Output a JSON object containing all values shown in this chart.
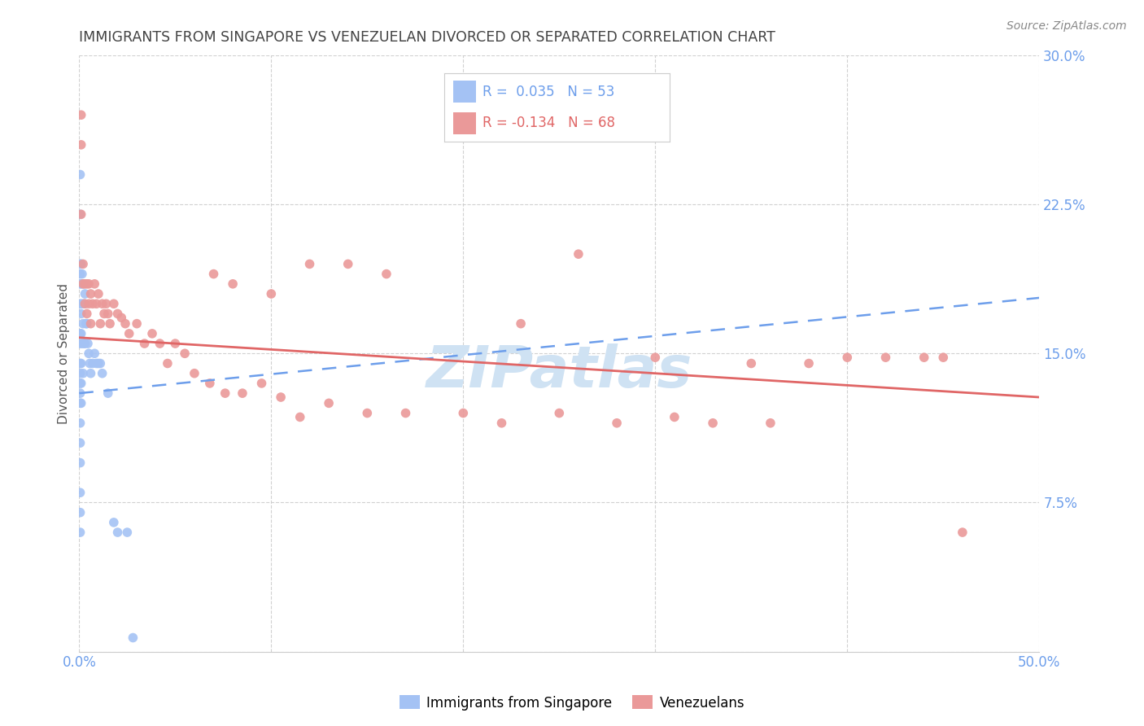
{
  "title": "IMMIGRANTS FROM SINGAPORE VS VENEZUELAN DIVORCED OR SEPARATED CORRELATION CHART",
  "source": "Source: ZipAtlas.com",
  "ylabel": "Divorced or Separated",
  "xlim": [
    0.0,
    0.5
  ],
  "ylim": [
    0.0,
    0.3
  ],
  "legend1_r": "R =  0.035",
  "legend1_n": "N = 53",
  "legend2_r": "R = -0.134",
  "legend2_n": "N = 68",
  "singapore_color": "#a4c2f4",
  "venezuela_color": "#ea9999",
  "singapore_line_color": "#6d9eeb",
  "venezuela_line_color": "#e06666",
  "grid_color": "#cccccc",
  "axis_tick_color": "#6d9eeb",
  "title_color": "#434343",
  "source_color": "#888888",
  "background_color": "#ffffff",
  "watermark_color": "#cfe2f3",
  "singapore_x": [
    0.0005,
    0.0005,
    0.0005,
    0.0005,
    0.0005,
    0.0005,
    0.0005,
    0.0005,
    0.0005,
    0.0005,
    0.0005,
    0.0005,
    0.0005,
    0.0005,
    0.0005,
    0.0005,
    0.0005,
    0.0005,
    0.0005,
    0.001,
    0.001,
    0.001,
    0.001,
    0.001,
    0.001,
    0.001,
    0.0015,
    0.0015,
    0.0015,
    0.002,
    0.002,
    0.002,
    0.0025,
    0.0025,
    0.003,
    0.003,
    0.0035,
    0.004,
    0.0045,
    0.005,
    0.0055,
    0.006,
    0.007,
    0.008,
    0.009,
    0.01,
    0.011,
    0.012,
    0.015,
    0.018,
    0.02,
    0.025,
    0.028
  ],
  "singapore_y": [
    0.24,
    0.22,
    0.195,
    0.19,
    0.185,
    0.175,
    0.16,
    0.155,
    0.145,
    0.14,
    0.135,
    0.13,
    0.125,
    0.115,
    0.105,
    0.095,
    0.08,
    0.07,
    0.06,
    0.195,
    0.185,
    0.17,
    0.16,
    0.145,
    0.135,
    0.125,
    0.19,
    0.175,
    0.155,
    0.185,
    0.165,
    0.14,
    0.175,
    0.155,
    0.18,
    0.155,
    0.165,
    0.165,
    0.155,
    0.15,
    0.145,
    0.14,
    0.145,
    0.15,
    0.145,
    0.145,
    0.145,
    0.14,
    0.13,
    0.065,
    0.06,
    0.06,
    0.007
  ],
  "venezuela_x": [
    0.001,
    0.001,
    0.001,
    0.002,
    0.002,
    0.003,
    0.003,
    0.004,
    0.004,
    0.005,
    0.005,
    0.006,
    0.006,
    0.007,
    0.008,
    0.009,
    0.01,
    0.011,
    0.012,
    0.013,
    0.014,
    0.015,
    0.016,
    0.018,
    0.02,
    0.022,
    0.024,
    0.026,
    0.03,
    0.034,
    0.038,
    0.042,
    0.046,
    0.05,
    0.055,
    0.06,
    0.068,
    0.076,
    0.085,
    0.095,
    0.105,
    0.115,
    0.13,
    0.15,
    0.17,
    0.2,
    0.22,
    0.25,
    0.28,
    0.31,
    0.33,
    0.36,
    0.38,
    0.4,
    0.42,
    0.44,
    0.45,
    0.26,
    0.14,
    0.16,
    0.07,
    0.08,
    0.1,
    0.12,
    0.23,
    0.3,
    0.35,
    0.46
  ],
  "venezuela_y": [
    0.27,
    0.255,
    0.22,
    0.195,
    0.185,
    0.185,
    0.175,
    0.185,
    0.17,
    0.185,
    0.175,
    0.18,
    0.165,
    0.175,
    0.185,
    0.175,
    0.18,
    0.165,
    0.175,
    0.17,
    0.175,
    0.17,
    0.165,
    0.175,
    0.17,
    0.168,
    0.165,
    0.16,
    0.165,
    0.155,
    0.16,
    0.155,
    0.145,
    0.155,
    0.15,
    0.14,
    0.135,
    0.13,
    0.13,
    0.135,
    0.128,
    0.118,
    0.125,
    0.12,
    0.12,
    0.12,
    0.115,
    0.12,
    0.115,
    0.118,
    0.115,
    0.115,
    0.145,
    0.148,
    0.148,
    0.148,
    0.148,
    0.2,
    0.195,
    0.19,
    0.19,
    0.185,
    0.18,
    0.195,
    0.165,
    0.148,
    0.145,
    0.06
  ],
  "sg_line_x0": 0.0,
  "sg_line_x1": 0.5,
  "sg_line_y0": 0.13,
  "sg_line_y1": 0.178,
  "vz_line_x0": 0.0,
  "vz_line_x1": 0.5,
  "vz_line_y0": 0.158,
  "vz_line_y1": 0.128
}
